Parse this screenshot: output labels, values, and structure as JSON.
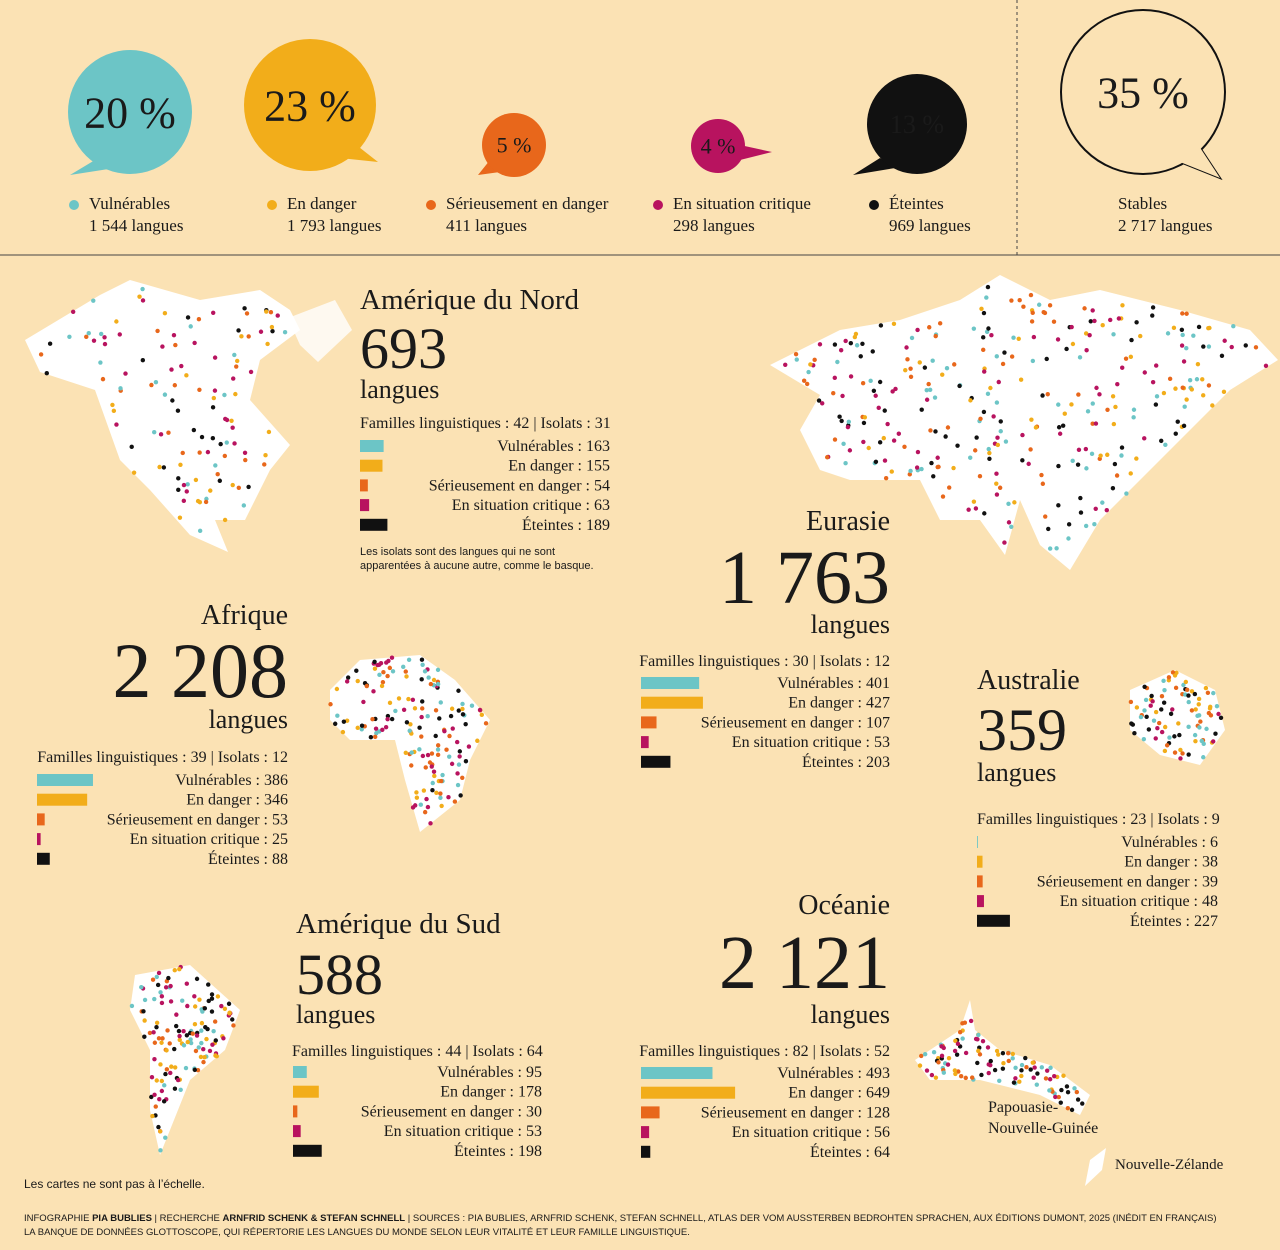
{
  "status_colors": [
    "#6cc5c6",
    "#f2ad1a",
    "#e8671b",
    "#b8135f",
    "#111111"
  ],
  "summary": [
    {
      "percent": "20 %",
      "status": "Vulnérables",
      "count": "1 544 langues"
    },
    {
      "percent": "23 %",
      "status": "En danger",
      "count": "1 793 langues"
    },
    {
      "percent": "5 %",
      "status": "Sérieusement en danger",
      "count": "411 langues"
    },
    {
      "percent": "4 %",
      "status": "En situation critique",
      "count": "298 langues"
    },
    {
      "percent": "13 %",
      "status": "Éteintes",
      "count": "969 langues"
    },
    {
      "percent": "35 %",
      "status": "Stables",
      "count": "2 717 langues"
    }
  ],
  "regions": [
    {
      "name": "Amérique du Nord",
      "total": "693",
      "unit": "langues",
      "families": "Familles linguistiques : 42 | Isolats : 31",
      "bars": {
        "labels": [
          "Vulnérables : 163",
          "En danger : 155",
          "Sérieusement en danger : 54",
          "En situation critique : 63",
          "Éteintes : 189"
        ],
        "values": [
          163,
          155,
          54,
          63,
          189
        ]
      },
      "note": [
        "Les isolats sont des langues qui ne sont",
        "apparentées à aucune autre, comme le basque."
      ]
    },
    {
      "name": "Eurasie",
      "total": "1 763",
      "unit": "langues",
      "families": "Familles linguistiques : 30 | Isolats : 12",
      "bars": {
        "labels": [
          "Vulnérables : 401",
          "En danger : 427",
          "Sérieusement en danger : 107",
          "En situation critique : 53",
          "Éteintes : 203"
        ],
        "values": [
          401,
          427,
          107,
          53,
          203
        ]
      }
    },
    {
      "name": "Afrique",
      "total": "2 208",
      "unit": "langues",
      "families": "Familles linguistiques : 39 | Isolats : 12",
      "bars": {
        "labels": [
          "Vulnérables : 386",
          "En danger : 346",
          "Sérieusement en danger : 53",
          "En situation critique : 25",
          "Éteintes : 88"
        ],
        "values": [
          386,
          346,
          53,
          25,
          88
        ]
      }
    },
    {
      "name": "Australie",
      "total": "359",
      "unit": "langues",
      "families": "Familles linguistiques : 23 | Isolats : 9",
      "bars": {
        "labels": [
          "Vulnérables : 6",
          "En danger : 38",
          "Sérieusement en danger : 39",
          "En situation critique : 48",
          "Éteintes : 227"
        ],
        "values": [
          6,
          38,
          39,
          48,
          227
        ]
      }
    },
    {
      "name": "Amérique du Sud",
      "total": "588",
      "unit": "langues",
      "families": "Familles linguistiques : 44 | Isolats : 64",
      "bars": {
        "labels": [
          "Vulnérables : 95",
          "En danger : 178",
          "Sérieusement en danger : 30",
          "En situation critique : 53",
          "Éteintes : 198"
        ],
        "values": [
          95,
          178,
          30,
          53,
          198
        ]
      }
    },
    {
      "name": "Océanie",
      "total": "2 121",
      "unit": "langues",
      "families": "Familles linguistiques : 82 | Isolats : 52",
      "bars": {
        "labels": [
          "Vulnérables : 493",
          "En danger : 649",
          "Sérieusement en danger : 128",
          "En situation critique : 56",
          "Éteintes : 64"
        ],
        "values": [
          493,
          649,
          128,
          56,
          64
        ]
      }
    }
  ],
  "map_labels": {
    "png": [
      "Papouasie-",
      "Nouvelle-Guinée"
    ],
    "nz": "Nouvelle-Zélande"
  },
  "scale_note": "Les cartes ne sont pas à l’échelle.",
  "credits": [
    [
      "INFOGRAPHIE ",
      "PIA BUBLIES",
      " | RECHERCHE ",
      "ARNFRID SCHENK & STEFAN SCHNELL",
      " | SOURCES : PIA BUBLIES, ARNFRID SCHENK, STEFAN SCHNELL, ATLAS DER VOM AUSSTERBEN BEDROHTEN SPRACHEN, AUX ÉDITIONS DUMONT, 2025 (INÉDIT EN FRANÇAIS)"
    ],
    [
      "LA BANQUE DE DONNÉES GLOTTOSCOPE, QUI RÉPERTORIE LES LANGUES DU MONDE SELON LEUR VITALITÉ ET LEUR FAMILLE LINGUISTIQUE."
    ]
  ]
}
